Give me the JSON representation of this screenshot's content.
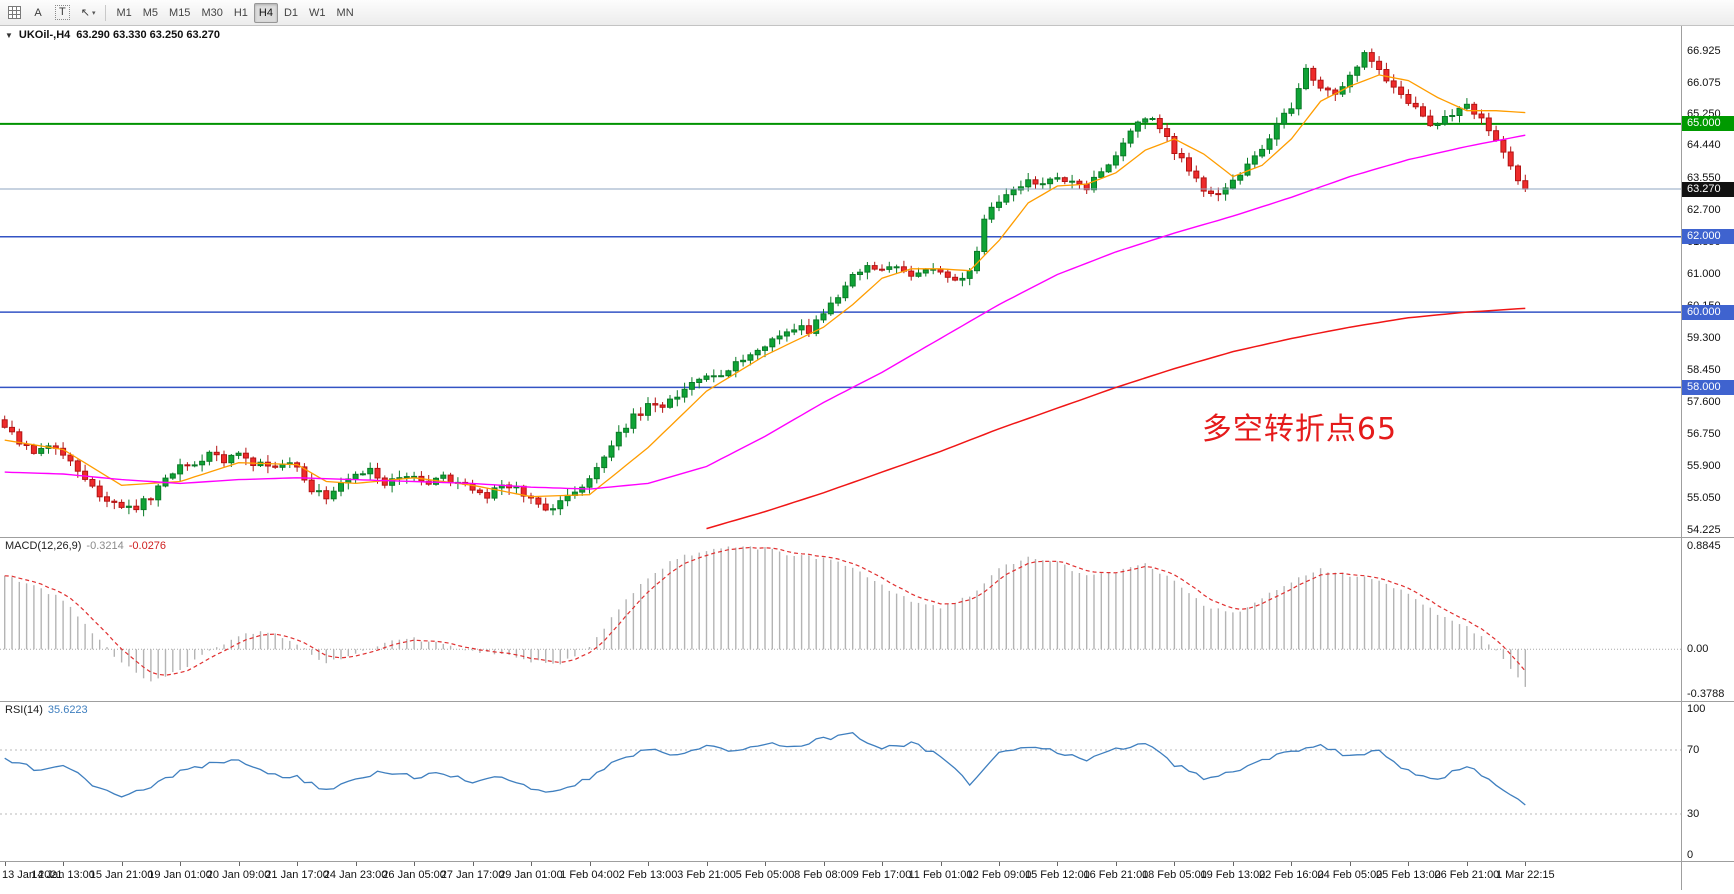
{
  "toolbar": {
    "tools": [
      {
        "name": "grid-icon",
        "label": ""
      },
      {
        "name": "annotation-a-button",
        "label": "A"
      },
      {
        "name": "text-tool-button",
        "label": "T"
      },
      {
        "name": "cursor-dropdown-button",
        "label": ""
      }
    ],
    "timeframes": [
      {
        "label": "M1",
        "active": false
      },
      {
        "label": "M5",
        "active": false
      },
      {
        "label": "M15",
        "active": false
      },
      {
        "label": "M30",
        "active": false
      },
      {
        "label": "H1",
        "active": false
      },
      {
        "label": "H4",
        "active": true
      },
      {
        "label": "D1",
        "active": false
      },
      {
        "label": "W1",
        "active": false
      },
      {
        "label": "MN",
        "active": false
      }
    ]
  },
  "icons": {
    "collapse": "▼",
    "cursor": "↖",
    "caret": "▾"
  },
  "chart": {
    "symbol_timeframe": "UKOil-,H4",
    "ohlc": "63.290 63.330 63.250 63.270"
  },
  "macd_panel": {
    "name": "MACD(12,26,9)",
    "main_value": "-0.3214",
    "signal_value": "-0.0276"
  },
  "rsi_panel": {
    "name": "RSI(14)",
    "value": "35.6223"
  },
  "chart_data": {
    "type": "candlestick",
    "symbol": "UKOil-",
    "timeframe": "H4",
    "current_ohlc": {
      "open": 63.29,
      "high": 63.33,
      "low": 63.25,
      "close": 63.27
    },
    "current_price": 63.27,
    "price_range": [
      54.0,
      67.6
    ],
    "bars_total": 209,
    "bars_pixel_span": 1528,
    "y_axis_ticks": [
      "66.925",
      "66.075",
      "65.250",
      "64.440",
      "63.550",
      "62.700",
      "61.850",
      "61.000",
      "60.150",
      "59.300",
      "58.450",
      "57.600",
      "56.750",
      "55.900",
      "55.050",
      "54.225"
    ],
    "x_axis_ticks": [
      "13 Jan 2021",
      "14 Jan 13:00",
      "15 Jan 21:00",
      "19 Jan 01:00",
      "20 Jan 09:00",
      "21 Jan 17:00",
      "24 Jan 23:00",
      "26 Jan 05:00",
      "27 Jan 17:00",
      "29 Jan 01:00",
      "1 Feb 04:00",
      "2 Feb 13:00",
      "3 Feb 21:00",
      "5 Feb 05:00",
      "8 Feb 08:00",
      "9 Feb 17:00",
      "11 Feb 01:00",
      "12 Feb 09:00",
      "15 Feb 12:00",
      "16 Feb 21:00",
      "18 Feb 05:00",
      "19 Feb 13:00",
      "22 Feb 16:00",
      "24 Feb 05:00",
      "25 Feb 13:00",
      "26 Feb 21:00",
      "1 Mar 22:15"
    ],
    "horizontal_levels": [
      {
        "price": 65.0,
        "color": "#009300",
        "width": 2
      },
      {
        "price": 62.0,
        "color": "#3353c4",
        "width": 1.5
      },
      {
        "price": 60.0,
        "color": "#3353c4",
        "width": 1.5
      },
      {
        "price": 58.0,
        "color": "#3353c4",
        "width": 1.5
      }
    ],
    "bid_line_color": "#8fa6c2",
    "candle_colors": {
      "up_fill": "#0fa336",
      "up_stroke": "#0a7a27",
      "down_fill": "#ee2b2b",
      "down_stroke": "#b31414"
    },
    "price_badges": [
      {
        "text": "65.000",
        "price": 65.0,
        "bg": "#009a00"
      },
      {
        "text": "63.270",
        "price": 63.27,
        "bg": "#111111"
      },
      {
        "text": "62.000",
        "price": 62.0,
        "bg": "#3f63cf"
      },
      {
        "text": "60.000",
        "price": 60.0,
        "bg": "#3f63cf"
      },
      {
        "text": "58.000",
        "price": 58.0,
        "bg": "#3f63cf"
      }
    ],
    "annotation": {
      "text": "多空转折点65",
      "color": "#e51b1b",
      "x_frac": 0.715,
      "price": 57.55
    },
    "close_waypoints": [
      [
        0,
        56.9
      ],
      [
        2,
        56.55
      ],
      [
        4,
        56.2
      ],
      [
        6,
        56.45
      ],
      [
        8,
        56.2
      ],
      [
        10,
        55.8
      ],
      [
        12,
        55.35
      ],
      [
        14,
        55.0
      ],
      [
        16,
        54.9
      ],
      [
        18,
        54.8
      ],
      [
        20,
        55.1
      ],
      [
        22,
        55.5
      ],
      [
        24,
        55.85
      ],
      [
        26,
        56.0
      ],
      [
        28,
        56.2
      ],
      [
        30,
        56.05
      ],
      [
        32,
        56.3
      ],
      [
        34,
        56.0
      ],
      [
        36,
        55.9
      ],
      [
        38,
        56.0
      ],
      [
        40,
        55.9
      ],
      [
        42,
        55.3
      ],
      [
        44,
        55.1
      ],
      [
        46,
        55.5
      ],
      [
        48,
        55.65
      ],
      [
        50,
        55.8
      ],
      [
        52,
        55.5
      ],
      [
        54,
        55.7
      ],
      [
        56,
        55.6
      ],
      [
        58,
        55.4
      ],
      [
        60,
        55.6
      ],
      [
        62,
        55.5
      ],
      [
        64,
        55.3
      ],
      [
        66,
        55.15
      ],
      [
        68,
        55.4
      ],
      [
        70,
        55.3
      ],
      [
        72,
        55.1
      ],
      [
        74,
        54.8
      ],
      [
        76,
        54.95
      ],
      [
        78,
        55.2
      ],
      [
        80,
        55.5
      ],
      [
        82,
        56.2
      ],
      [
        84,
        56.8
      ],
      [
        86,
        57.2
      ],
      [
        88,
        57.5
      ],
      [
        90,
        57.4
      ],
      [
        92,
        57.8
      ],
      [
        94,
        58.2
      ],
      [
        96,
        58.4
      ],
      [
        98,
        58.3
      ],
      [
        100,
        58.6
      ],
      [
        102,
        58.9
      ],
      [
        104,
        59.1
      ],
      [
        106,
        59.4
      ],
      [
        108,
        59.6
      ],
      [
        110,
        59.5
      ],
      [
        112,
        59.9
      ],
      [
        114,
        60.4
      ],
      [
        116,
        60.9
      ],
      [
        118,
        61.2
      ],
      [
        120,
        61.1
      ],
      [
        122,
        61.3
      ],
      [
        124,
        61.0
      ],
      [
        126,
        61.2
      ],
      [
        128,
        61.1
      ],
      [
        130,
        60.9
      ],
      [
        132,
        61.0
      ],
      [
        134,
        62.4
      ],
      [
        136,
        63.0
      ],
      [
        138,
        63.3
      ],
      [
        140,
        63.5
      ],
      [
        142,
        63.35
      ],
      [
        144,
        63.6
      ],
      [
        146,
        63.4
      ],
      [
        148,
        63.3
      ],
      [
        150,
        63.7
      ],
      [
        152,
        64.2
      ],
      [
        154,
        64.8
      ],
      [
        156,
        65.2
      ],
      [
        158,
        64.9
      ],
      [
        160,
        64.3
      ],
      [
        162,
        63.8
      ],
      [
        164,
        63.3
      ],
      [
        166,
        63.15
      ],
      [
        168,
        63.5
      ],
      [
        170,
        63.9
      ],
      [
        172,
        64.4
      ],
      [
        174,
        64.9
      ],
      [
        176,
        65.5
      ],
      [
        178,
        66.5
      ],
      [
        180,
        66.0
      ],
      [
        182,
        65.7
      ],
      [
        184,
        66.3
      ],
      [
        186,
        66.8
      ],
      [
        188,
        66.4
      ],
      [
        190,
        66.0
      ],
      [
        192,
        65.6
      ],
      [
        194,
        65.15
      ],
      [
        196,
        64.9
      ],
      [
        198,
        65.3
      ],
      [
        200,
        65.5
      ],
      [
        202,
        65.2
      ],
      [
        204,
        64.6
      ],
      [
        206,
        63.9
      ],
      [
        208,
        63.27
      ]
    ],
    "moving_averages": [
      {
        "name": "ma-fast",
        "color": "#ff9d00",
        "width": 1.3,
        "waypoints": [
          [
            0,
            56.6
          ],
          [
            8,
            56.35
          ],
          [
            16,
            55.4
          ],
          [
            24,
            55.5
          ],
          [
            32,
            56.0
          ],
          [
            40,
            55.95
          ],
          [
            44,
            55.5
          ],
          [
            48,
            55.45
          ],
          [
            56,
            55.6
          ],
          [
            64,
            55.4
          ],
          [
            72,
            55.1
          ],
          [
            80,
            55.15
          ],
          [
            88,
            56.4
          ],
          [
            96,
            57.9
          ],
          [
            104,
            58.85
          ],
          [
            112,
            59.6
          ],
          [
            116,
            60.2
          ],
          [
            120,
            60.9
          ],
          [
            124,
            61.15
          ],
          [
            128,
            61.15
          ],
          [
            132,
            61.1
          ],
          [
            136,
            61.9
          ],
          [
            140,
            62.9
          ],
          [
            144,
            63.35
          ],
          [
            148,
            63.4
          ],
          [
            152,
            63.7
          ],
          [
            156,
            64.3
          ],
          [
            160,
            64.6
          ],
          [
            164,
            64.2
          ],
          [
            168,
            63.6
          ],
          [
            172,
            63.9
          ],
          [
            176,
            64.6
          ],
          [
            180,
            65.6
          ],
          [
            184,
            66.0
          ],
          [
            188,
            66.3
          ],
          [
            192,
            66.15
          ],
          [
            196,
            65.7
          ],
          [
            200,
            65.35
          ],
          [
            204,
            65.35
          ],
          [
            208,
            65.3
          ]
        ]
      },
      {
        "name": "ma-mid",
        "color": "#ff00ff",
        "width": 1.4,
        "waypoints": [
          [
            0,
            55.75
          ],
          [
            8,
            55.7
          ],
          [
            16,
            55.55
          ],
          [
            24,
            55.45
          ],
          [
            32,
            55.55
          ],
          [
            40,
            55.6
          ],
          [
            48,
            55.55
          ],
          [
            56,
            55.5
          ],
          [
            64,
            55.45
          ],
          [
            72,
            55.35
          ],
          [
            80,
            55.3
          ],
          [
            88,
            55.45
          ],
          [
            96,
            55.9
          ],
          [
            104,
            56.7
          ],
          [
            112,
            57.6
          ],
          [
            120,
            58.4
          ],
          [
            128,
            59.3
          ],
          [
            136,
            60.2
          ],
          [
            144,
            61.0
          ],
          [
            152,
            61.6
          ],
          [
            160,
            62.1
          ],
          [
            168,
            62.55
          ],
          [
            176,
            63.05
          ],
          [
            184,
            63.6
          ],
          [
            192,
            64.05
          ],
          [
            200,
            64.4
          ],
          [
            208,
            64.7
          ]
        ]
      },
      {
        "name": "ma-slow",
        "color": "#f01616",
        "width": 1.5,
        "waypoints": [
          [
            96,
            54.25
          ],
          [
            104,
            54.7
          ],
          [
            112,
            55.2
          ],
          [
            120,
            55.75
          ],
          [
            128,
            56.3
          ],
          [
            136,
            56.9
          ],
          [
            144,
            57.45
          ],
          [
            152,
            58.0
          ],
          [
            160,
            58.5
          ],
          [
            168,
            58.95
          ],
          [
            176,
            59.3
          ],
          [
            184,
            59.6
          ],
          [
            192,
            59.85
          ],
          [
            200,
            60.0
          ],
          [
            208,
            60.1
          ]
        ]
      }
    ],
    "macd": {
      "range": [
        -0.45,
        0.95
      ],
      "axis_ticks": [
        {
          "text": "0.8845",
          "value": 0.8845
        },
        {
          "text": "0.00",
          "value": 0
        },
        {
          "text": "-0.3788",
          "value": -0.3788
        }
      ],
      "histogram_color": "#b4b4b4",
      "signal_color": "#e03030",
      "current_main": -0.3214,
      "current_signal": -0.0276,
      "main_waypoints": [
        [
          0,
          0.62
        ],
        [
          4,
          0.55
        ],
        [
          8,
          0.42
        ],
        [
          12,
          0.15
        ],
        [
          16,
          -0.12
        ],
        [
          20,
          -0.28
        ],
        [
          24,
          -0.18
        ],
        [
          28,
          -0.02
        ],
        [
          32,
          0.12
        ],
        [
          36,
          0.15
        ],
        [
          40,
          0.05
        ],
        [
          44,
          -0.12
        ],
        [
          48,
          -0.04
        ],
        [
          52,
          0.06
        ],
        [
          56,
          0.09
        ],
        [
          60,
          0.04
        ],
        [
          64,
          -0.02
        ],
        [
          68,
          -0.05
        ],
        [
          72,
          -0.1
        ],
        [
          76,
          -0.13
        ],
        [
          80,
          0.03
        ],
        [
          84,
          0.35
        ],
        [
          88,
          0.62
        ],
        [
          92,
          0.78
        ],
        [
          96,
          0.85
        ],
        [
          100,
          0.88
        ],
        [
          104,
          0.86
        ],
        [
          108,
          0.8
        ],
        [
          112,
          0.78
        ],
        [
          116,
          0.7
        ],
        [
          120,
          0.54
        ],
        [
          124,
          0.42
        ],
        [
          128,
          0.36
        ],
        [
          132,
          0.46
        ],
        [
          136,
          0.68
        ],
        [
          140,
          0.8
        ],
        [
          144,
          0.74
        ],
        [
          148,
          0.62
        ],
        [
          152,
          0.66
        ],
        [
          156,
          0.74
        ],
        [
          160,
          0.58
        ],
        [
          164,
          0.38
        ],
        [
          168,
          0.3
        ],
        [
          172,
          0.44
        ],
        [
          176,
          0.58
        ],
        [
          180,
          0.68
        ],
        [
          184,
          0.63
        ],
        [
          188,
          0.6
        ],
        [
          192,
          0.46
        ],
        [
          196,
          0.3
        ],
        [
          200,
          0.2
        ],
        [
          204,
          0.0
        ],
        [
          208,
          -0.3214
        ]
      ]
    },
    "rsi": {
      "range": [
        0,
        100
      ],
      "levels": [
        70,
        30
      ],
      "axis_ticks": [
        {
          "text": "100",
          "value": 100
        },
        {
          "text": "70",
          "value": 70
        },
        {
          "text": "30",
          "value": 30
        },
        {
          "text": "0",
          "value": 0
        }
      ],
      "line_color": "#3f7fbf",
      "current": 35.6223,
      "waypoints": [
        [
          0,
          65
        ],
        [
          4,
          58
        ],
        [
          8,
          61
        ],
        [
          12,
          49
        ],
        [
          16,
          42
        ],
        [
          20,
          47
        ],
        [
          24,
          56
        ],
        [
          28,
          61
        ],
        [
          32,
          64
        ],
        [
          36,
          55
        ],
        [
          40,
          53
        ],
        [
          44,
          44
        ],
        [
          48,
          52
        ],
        [
          52,
          57
        ],
        [
          56,
          53
        ],
        [
          60,
          56
        ],
        [
          64,
          50
        ],
        [
          68,
          53
        ],
        [
          72,
          46
        ],
        [
          76,
          44
        ],
        [
          80,
          53
        ],
        [
          84,
          64
        ],
        [
          88,
          70
        ],
        [
          92,
          67
        ],
        [
          96,
          72
        ],
        [
          100,
          69
        ],
        [
          104,
          74
        ],
        [
          108,
          71
        ],
        [
          112,
          77
        ],
        [
          116,
          80
        ],
        [
          120,
          71
        ],
        [
          124,
          74
        ],
        [
          128,
          67
        ],
        [
          132,
          48
        ],
        [
          136,
          68
        ],
        [
          140,
          73
        ],
        [
          144,
          69
        ],
        [
          148,
          63
        ],
        [
          152,
          71
        ],
        [
          156,
          75
        ],
        [
          160,
          61
        ],
        [
          164,
          52
        ],
        [
          168,
          57
        ],
        [
          172,
          63
        ],
        [
          176,
          69
        ],
        [
          180,
          72
        ],
        [
          184,
          66
        ],
        [
          188,
          69
        ],
        [
          192,
          57
        ],
        [
          196,
          52
        ],
        [
          200,
          61
        ],
        [
          204,
          47
        ],
        [
          208,
          35.6
        ]
      ]
    }
  }
}
